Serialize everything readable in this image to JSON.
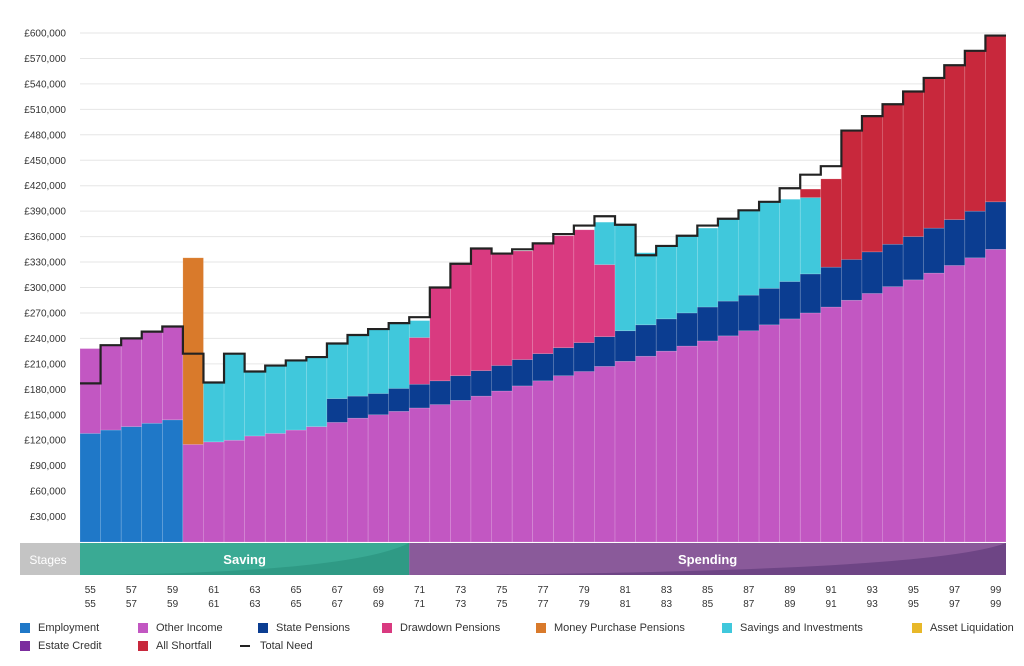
{
  "chart_data": {
    "type": "bar",
    "stacked": true,
    "title": "",
    "xlabel": "",
    "ylabel": "",
    "ylim": [
      0,
      600000
    ],
    "y_ticks": [
      30000,
      60000,
      90000,
      120000,
      150000,
      180000,
      210000,
      240000,
      270000,
      300000,
      330000,
      360000,
      390000,
      420000,
      450000,
      480000,
      510000,
      540000,
      570000,
      600000
    ],
    "y_tick_labels": [
      "£30,000",
      "£60,000",
      "£90,000",
      "£120,000",
      "£150,000",
      "£180,000",
      "£210,000",
      "£240,000",
      "£270,000",
      "£300,000",
      "£330,000",
      "£360,000",
      "£390,000",
      "£420,000",
      "£450,000",
      "£480,000",
      "£510,000",
      "£540,000",
      "£570,000",
      "£600,000"
    ],
    "ages": [
      55,
      56,
      57,
      58,
      59,
      60,
      61,
      62,
      63,
      64,
      65,
      66,
      67,
      68,
      69,
      70,
      71,
      72,
      73,
      74,
      75,
      76,
      77,
      78,
      79,
      80,
      81,
      82,
      83,
      84,
      85,
      86,
      87,
      88,
      89,
      90,
      91,
      92,
      93,
      94,
      95,
      96,
      97,
      98,
      99
    ],
    "x_tick_labels": [
      "55",
      "57",
      "59",
      "61",
      "63",
      "65",
      "67",
      "69",
      "71",
      "73",
      "75",
      "77",
      "79",
      "81",
      "83",
      "85",
      "87",
      "89",
      "91",
      "93",
      "95",
      "97",
      "99"
    ],
    "series": [
      {
        "name": "Employment",
        "color": "#1f78c8",
        "values": [
          128000,
          132000,
          136000,
          140000,
          144000,
          0,
          0,
          0,
          0,
          0,
          0,
          0,
          0,
          0,
          0,
          0,
          0,
          0,
          0,
          0,
          0,
          0,
          0,
          0,
          0,
          0,
          0,
          0,
          0,
          0,
          0,
          0,
          0,
          0,
          0,
          0,
          0,
          0,
          0,
          0,
          0,
          0,
          0,
          0,
          0
        ]
      },
      {
        "name": "Other Income",
        "color": "#c257c2",
        "values": [
          100000,
          100000,
          104000,
          108000,
          110000,
          115000,
          118000,
          120000,
          125000,
          128000,
          132000,
          136000,
          141000,
          146000,
          150000,
          154000,
          158000,
          162000,
          167000,
          172000,
          178000,
          184000,
          190000,
          196000,
          201000,
          207000,
          213000,
          219000,
          225000,
          231000,
          237000,
          243000,
          249000,
          256000,
          263000,
          270000,
          277000,
          285000,
          293000,
          301000,
          309000,
          317000,
          326000,
          335000,
          345000
        ]
      },
      {
        "name": "State Pensions",
        "color": "#0b3d91",
        "values": [
          0,
          0,
          0,
          0,
          0,
          0,
          0,
          0,
          0,
          0,
          0,
          0,
          28000,
          26000,
          25000,
          27000,
          28000,
          28000,
          29000,
          30000,
          30000,
          31000,
          32000,
          33000,
          34000,
          35000,
          36000,
          37000,
          38000,
          39000,
          40000,
          41000,
          42000,
          43000,
          44000,
          46000,
          47000,
          48000,
          49000,
          50000,
          51000,
          53000,
          54000,
          55000,
          56000
        ]
      },
      {
        "name": "Drawdown Pensions",
        "color": "#d93a80",
        "values": [
          0,
          0,
          0,
          0,
          0,
          0,
          0,
          0,
          0,
          0,
          0,
          0,
          0,
          0,
          0,
          0,
          55000,
          110000,
          132000,
          144000,
          132000,
          128000,
          130000,
          132000,
          133000,
          85000,
          0,
          0,
          0,
          0,
          0,
          0,
          0,
          0,
          0,
          0,
          0,
          0,
          0,
          0,
          0,
          0,
          0,
          0,
          0
        ]
      },
      {
        "name": "Money Purchase Pensions",
        "color": "#d97a2b",
        "values": [
          0,
          0,
          0,
          0,
          0,
          220000,
          0,
          0,
          0,
          0,
          0,
          0,
          0,
          0,
          0,
          0,
          0,
          0,
          0,
          0,
          0,
          0,
          0,
          0,
          0,
          0,
          0,
          0,
          0,
          0,
          0,
          0,
          0,
          0,
          0,
          0,
          0,
          0,
          0,
          0,
          0,
          0,
          0,
          0,
          0
        ]
      },
      {
        "name": "Savings and Investments",
        "color": "#40c8dc",
        "values": [
          0,
          0,
          0,
          0,
          0,
          0,
          70000,
          102000,
          77000,
          81000,
          82000,
          82000,
          65000,
          72000,
          76000,
          77000,
          20000,
          0,
          0,
          0,
          0,
          0,
          0,
          0,
          0,
          50000,
          125000,
          85000,
          86000,
          91000,
          93000,
          97000,
          100000,
          102000,
          97000,
          90000,
          0,
          0,
          0,
          0,
          0,
          0,
          0,
          0,
          0
        ]
      },
      {
        "name": "Asset Liquidation",
        "color": "#e8b829",
        "values": [
          0,
          0,
          0,
          0,
          0,
          0,
          0,
          0,
          0,
          0,
          0,
          0,
          0,
          0,
          0,
          0,
          0,
          0,
          0,
          0,
          0,
          0,
          0,
          0,
          0,
          0,
          0,
          0,
          0,
          0,
          0,
          0,
          0,
          0,
          0,
          0,
          0,
          0,
          0,
          0,
          0,
          0,
          0,
          0,
          0
        ]
      },
      {
        "name": "Estate Credit",
        "color": "#7b2d9e",
        "values": [
          0,
          0,
          0,
          0,
          0,
          0,
          0,
          0,
          0,
          0,
          0,
          0,
          0,
          0,
          0,
          0,
          0,
          0,
          0,
          0,
          0,
          0,
          0,
          0,
          0,
          0,
          0,
          0,
          0,
          0,
          0,
          0,
          0,
          0,
          0,
          0,
          0,
          0,
          0,
          0,
          0,
          0,
          0,
          0,
          0
        ]
      },
      {
        "name": "All Shortfall",
        "color": "#c8283c",
        "values": [
          0,
          0,
          0,
          0,
          0,
          0,
          0,
          0,
          0,
          0,
          0,
          0,
          0,
          0,
          0,
          0,
          0,
          0,
          0,
          0,
          0,
          0,
          0,
          0,
          0,
          0,
          0,
          0,
          0,
          0,
          0,
          0,
          0,
          0,
          0,
          10000,
          104000,
          152000,
          160000,
          165000,
          172000,
          177000,
          181000,
          189000,
          196000
        ]
      }
    ],
    "total_need": {
      "name": "Total Need",
      "color": "#222222",
      "values": [
        187000,
        232000,
        240000,
        248000,
        254000,
        222000,
        188000,
        222000,
        201000,
        208000,
        214000,
        218000,
        234000,
        244000,
        251000,
        258000,
        265000,
        300000,
        328000,
        346000,
        340000,
        345000,
        352000,
        363000,
        373000,
        384000,
        374000,
        338000,
        349000,
        361000,
        373000,
        381000,
        391000,
        401000,
        417000,
        433000,
        443000,
        485000,
        502000,
        516000,
        531000,
        547000,
        562000,
        579000,
        597000
      ]
    },
    "legend": [
      "Employment",
      "Other Income",
      "State Pensions",
      "Drawdown Pensions",
      "Money Purchase Pensions",
      "Savings and Investments",
      "Asset Liquidation",
      "Estate Credit",
      "All Shortfall",
      "Total Need"
    ],
    "legend_position": "bottom"
  },
  "stages": {
    "label": "Stages",
    "saving": {
      "label": "Saving",
      "from_age": 55,
      "to_age": 70,
      "color": "#3aaa94"
    },
    "spending": {
      "label": "Spending",
      "from_age": 71,
      "to_age": 99,
      "color": "#8a5a9a"
    }
  },
  "legend_items": {
    "employment": "Employment",
    "other_income": "Other Income",
    "state_pensions": "State Pensions",
    "drawdown_pensions": "Drawdown Pensions",
    "money_purchase": "Money Purchase Pensions",
    "savings": "Savings and Investments",
    "asset_liquidation": "Asset Liquidation",
    "estate_credit": "Estate Credit",
    "all_shortfall": "All Shortfall",
    "total_need": "Total Need"
  },
  "colors": {
    "employment": "#1f78c8",
    "other_income": "#c257c2",
    "state_pensions": "#0b3d91",
    "drawdown_pensions": "#d93a80",
    "money_purchase": "#d97a2b",
    "savings": "#40c8dc",
    "asset_liquidation": "#e8b829",
    "estate_credit": "#7b2d9e",
    "all_shortfall": "#c8283c",
    "total_need": "#222222"
  }
}
